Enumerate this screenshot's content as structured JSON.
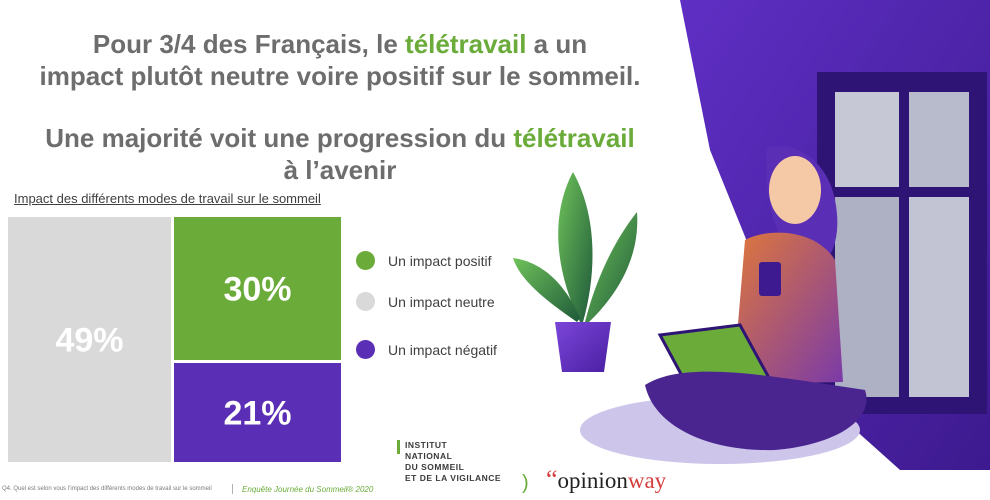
{
  "headline": {
    "line1a": "Pour 3/4 des Français, le ",
    "line1_accent": "télétravail",
    "line1b": " a un",
    "line2": "impact plutôt neutre voire positif sur le sommeil.",
    "line3a": "Une majorité voit une progression du ",
    "line3_accent": "télétravail",
    "line4": "à l’avenir"
  },
  "chart_data": {
    "type": "treemap",
    "title": "Impact des différents modes de travail sur le sommeil",
    "series": [
      {
        "name": "Un impact neutre",
        "value": 49,
        "label": "49%",
        "color": "#d9d9d9"
      },
      {
        "name": "Un impact positif",
        "value": 30,
        "label": "30%",
        "color": "#6aab3a"
      },
      {
        "name": "Un impact négatif",
        "value": 21,
        "label": "21%",
        "color": "#5b2fb5"
      }
    ],
    "legend_order": [
      "Un impact positif",
      "Un impact neutre",
      "Un impact négatif"
    ]
  },
  "footer": {
    "question": "Q4. Quel est selon vous l’impact des différents modes de travail sur le sommeil",
    "survey": "Enquête Journée du Sommeil® 2020"
  },
  "logos": {
    "institut": [
      "INSTITUT",
      "NATIONAL",
      "DU SOMMEIL",
      "ET DE LA VIGILANCE"
    ],
    "opinionway_a": "opinion",
    "opinionway_b": "way"
  },
  "colors": {
    "accent_green": "#6aab3a",
    "purple": "#5b2fb5",
    "neutral_gray": "#d9d9d9",
    "headline_gray": "#6d6d6d"
  }
}
